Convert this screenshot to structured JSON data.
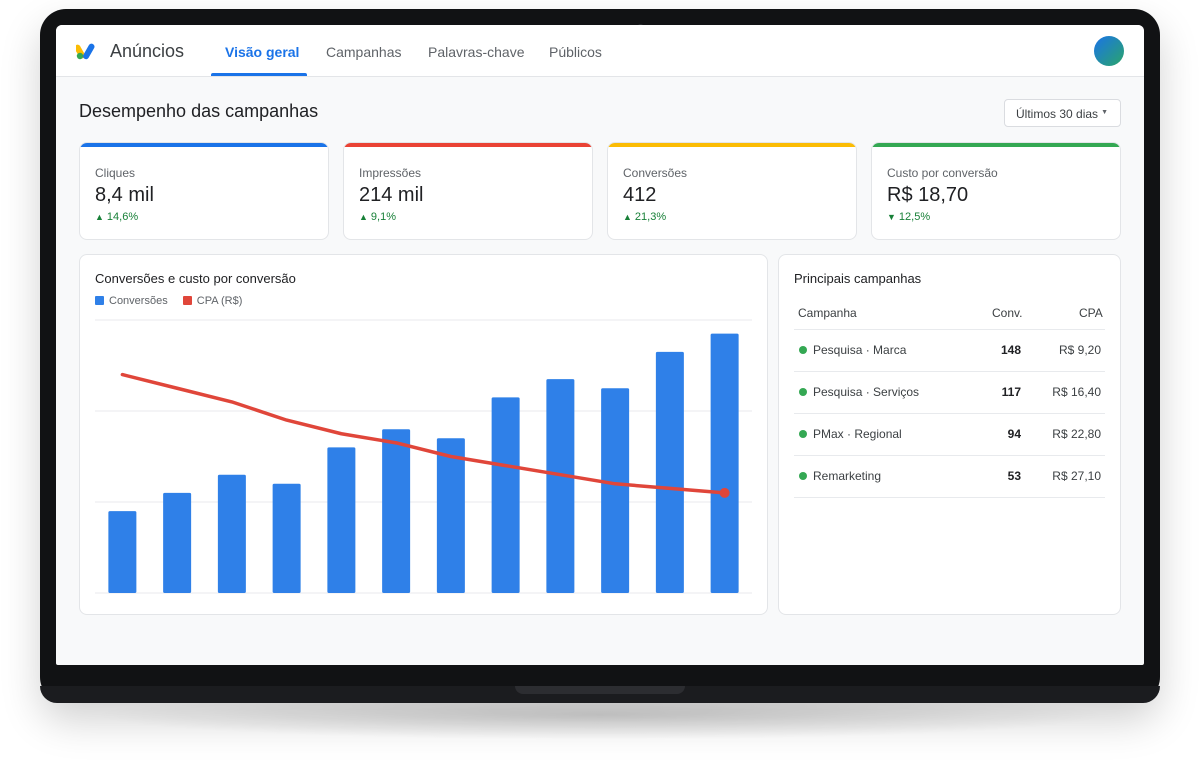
{
  "app": {
    "name": "Anúncios"
  },
  "tabs": [
    {
      "label": "Visão geral",
      "active": true
    },
    {
      "label": "Campanhas",
      "active": false
    },
    {
      "label": "Palavras-chave",
      "active": false
    },
    {
      "label": "Públicos",
      "active": false
    }
  ],
  "page": {
    "title": "Desempenho das campanhas",
    "date_range": "Últimos 30 dias"
  },
  "kpis": [
    {
      "label": "Cliques",
      "value": "8,4 mil",
      "delta": "14,6%",
      "direction": "up",
      "color": "#1a73e8"
    },
    {
      "label": "Impressões",
      "value": "214 mil",
      "delta": "9,1%",
      "direction": "up",
      "color": "#ea4335"
    },
    {
      "label": "Conversões",
      "value": "412",
      "delta": "21,3%",
      "direction": "up",
      "color": "#fbbc04"
    },
    {
      "label": "Custo por conversão",
      "value": "R$ 18,70",
      "delta": "12,5%",
      "direction": "down",
      "color": "#34a853"
    }
  ],
  "chart": {
    "title": "Conversões e custo por conversão",
    "legend": [
      {
        "label": "Conversões",
        "color": "#2f80e8"
      },
      {
        "label": "CPA (R$)",
        "color": "#e0463a"
      }
    ]
  },
  "chart_data": {
    "type": "bar",
    "title": "Conversões e custo por conversão",
    "series": [
      {
        "name": "Conversões",
        "type": "bar",
        "color": "#2f80e8",
        "values": [
          18,
          22,
          26,
          24,
          32,
          36,
          34,
          43,
          47,
          45,
          53,
          57
        ]
      },
      {
        "name": "CPA (R$)",
        "type": "line",
        "color": "#e0463a",
        "values": [
          48,
          45,
          42,
          38,
          35,
          33,
          30,
          28,
          26,
          24,
          23,
          22
        ]
      }
    ],
    "ylim": [
      0,
      60
    ],
    "grid": true,
    "legend_position": "top-left"
  },
  "top_campaigns": {
    "title": "Principais campanhas",
    "headers": {
      "campaign": "Campanha",
      "conv": "Conv.",
      "cpa": "CPA"
    },
    "rows": [
      {
        "name": "Pesquisa · Marca",
        "conv": "148",
        "cpa": "R$ 9,20"
      },
      {
        "name": "Pesquisa · Serviços",
        "conv": "117",
        "cpa": "R$ 16,40"
      },
      {
        "name": "PMax · Regional",
        "conv": "94",
        "cpa": "R$ 22,80"
      },
      {
        "name": "Remarketing",
        "conv": "53",
        "cpa": "R$ 27,10"
      }
    ],
    "status_color": "#34a853"
  }
}
